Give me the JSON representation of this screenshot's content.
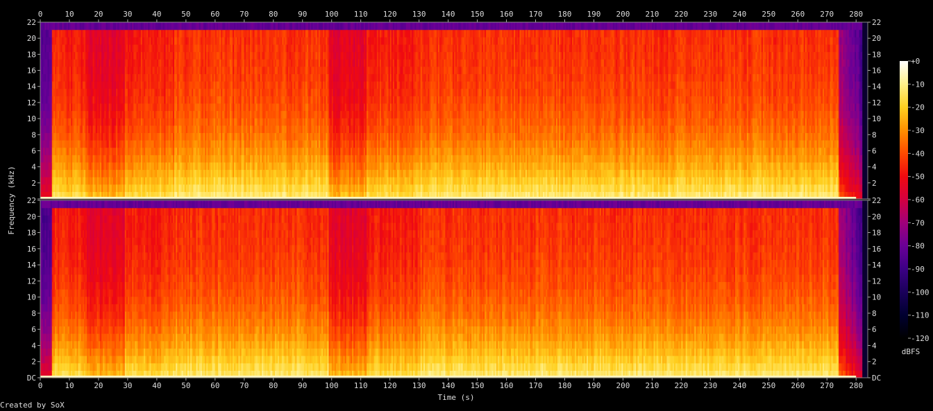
{
  "credit": "Created by SoX",
  "chart_data": {
    "type": "heatmap",
    "xlabel": "Time (s)",
    "ylabel": "Frequency (kHz)",
    "colorbar_label": "dBFS",
    "x_ticks": [
      0,
      10,
      20,
      30,
      40,
      50,
      60,
      70,
      80,
      90,
      100,
      110,
      120,
      130,
      140,
      150,
      160,
      170,
      180,
      190,
      200,
      210,
      220,
      230,
      240,
      250,
      260,
      270,
      280
    ],
    "xlim": [
      0,
      284
    ],
    "ylim": [
      0,
      22
    ],
    "y_ticks": [
      {
        "value": 0,
        "label": "DC"
      },
      {
        "value": 2,
        "label": "2"
      },
      {
        "value": 4,
        "label": "4"
      },
      {
        "value": 6,
        "label": "6"
      },
      {
        "value": 8,
        "label": "8"
      },
      {
        "value": 10,
        "label": "10"
      },
      {
        "value": 12,
        "label": "12"
      },
      {
        "value": 14,
        "label": "14"
      },
      {
        "value": 16,
        "label": "16"
      },
      {
        "value": 18,
        "label": "18"
      },
      {
        "value": 20,
        "label": "20"
      },
      {
        "value": 22,
        "label": "22"
      }
    ],
    "channels": 2,
    "colorbar_range": [
      -120,
      0
    ],
    "colorbar_ticks": [
      "+0",
      "-10",
      "-20",
      "-30",
      "-40",
      "-50",
      "-60",
      "-70",
      "-80",
      "-90",
      "-100",
      "-110",
      "-120"
    ],
    "sections_time": [
      {
        "from": 0,
        "to": 4,
        "level": "quiet"
      },
      {
        "from": 4,
        "to": 16,
        "level": "medium"
      },
      {
        "from": 16,
        "to": 29,
        "level": "sparse"
      },
      {
        "from": 29,
        "to": 46,
        "level": "medium"
      },
      {
        "from": 46,
        "to": 99,
        "level": "loud"
      },
      {
        "from": 99,
        "to": 112,
        "level": "sparse"
      },
      {
        "from": 112,
        "to": 130,
        "level": "medium"
      },
      {
        "from": 130,
        "to": 274,
        "level": "loud"
      },
      {
        "from": 274,
        "to": 282,
        "level": "fade"
      }
    ],
    "lowpass_cutoff_khz": 20.7,
    "colors": [
      "#000000",
      "#000030",
      "#1a005a",
      "#3c0085",
      "#6a0097",
      "#a0007a",
      "#d40040",
      "#f00a10",
      "#ff4a00",
      "#ff9000",
      "#ffd020",
      "#fff08a",
      "#ffffff"
    ]
  }
}
